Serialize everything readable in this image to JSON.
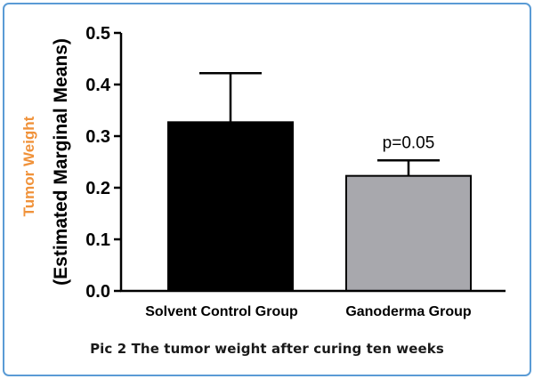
{
  "chart_data": {
    "type": "bar",
    "title": "",
    "categories": [
      "Solvent Control Group",
      "Ganoderma Group"
    ],
    "values": [
      0.327,
      0.223
    ],
    "error_upper": [
      0.422,
      0.253
    ],
    "bar_colors": [
      "#000000",
      "#a8a8ad"
    ],
    "ylabel_main": "Tumor Weight",
    "ylabel_sub": "(Estimated Marginal Means)",
    "ylabel_main_color": "#f0923a",
    "xlabel": "",
    "ylim": [
      0,
      0.5
    ],
    "yticks": [
      "0.0",
      "0.1",
      "0.2",
      "0.3",
      "0.4",
      "0.5"
    ],
    "ytick_values": [
      0.0,
      0.1,
      0.2,
      0.3,
      0.4,
      0.5
    ],
    "annotation": "p=0.05",
    "grid": false,
    "legend": "none"
  },
  "caption": "Pic 2 The tumor weight after curing ten weeks"
}
